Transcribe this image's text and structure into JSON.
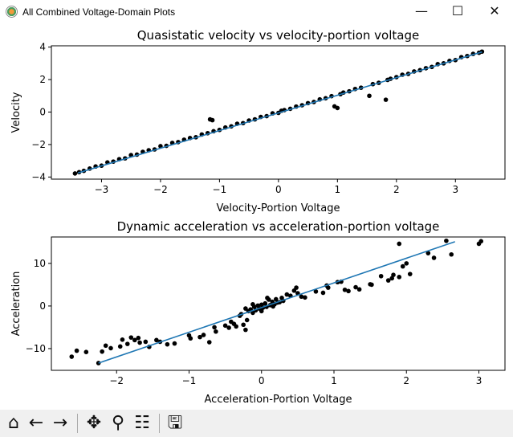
{
  "window": {
    "title": "All Combined Voltage-Domain Plots",
    "minimize": "—",
    "maximize": "☐",
    "close": "✕"
  },
  "toolbar": {
    "items": [
      {
        "name": "home-icon",
        "glyph": "⌂"
      },
      {
        "name": "back-icon",
        "glyph": "←"
      },
      {
        "name": "forward-icon",
        "glyph": "→"
      },
      {
        "name": "pan-icon",
        "glyph": "✥"
      },
      {
        "name": "zoom-icon",
        "glyph": "⚲"
      },
      {
        "name": "configure-subplots-icon",
        "glyph": "☷"
      },
      {
        "name": "save-icon",
        "glyph": "🖫"
      }
    ]
  },
  "chart_data": [
    {
      "type": "scatter",
      "title": "Quasistatic velocity vs velocity-portion voltage",
      "xlabel": "Velocity-Portion Voltage",
      "ylabel": "Velocity",
      "xlim": [
        -3.85,
        3.84
      ],
      "ylim": [
        -4.13,
        4.08
      ],
      "xticks": [
        -3,
        -2,
        -1,
        0,
        1,
        2,
        3
      ],
      "yticks": [
        -4,
        -2,
        0,
        2,
        4
      ],
      "grid": false,
      "point_color": "#000000",
      "fit_color": "#1f77b4",
      "fit_line": {
        "x": [
          -3.4,
          3.45
        ],
        "y": [
          -3.75,
          3.7
        ]
      },
      "points": [
        [
          -3.45,
          -3.78
        ],
        [
          -3.38,
          -3.7
        ],
        [
          -3.3,
          -3.62
        ],
        [
          -3.2,
          -3.48
        ],
        [
          -3.1,
          -3.35
        ],
        [
          -3.0,
          -3.3
        ],
        [
          -2.9,
          -3.1
        ],
        [
          -2.8,
          -3.05
        ],
        [
          -2.7,
          -2.9
        ],
        [
          -2.6,
          -2.85
        ],
        [
          -2.5,
          -2.65
        ],
        [
          -2.4,
          -2.62
        ],
        [
          -2.3,
          -2.45
        ],
        [
          -2.2,
          -2.35
        ],
        [
          -2.1,
          -2.3
        ],
        [
          -2.0,
          -2.1
        ],
        [
          -1.9,
          -2.08
        ],
        [
          -1.8,
          -1.9
        ],
        [
          -1.7,
          -1.85
        ],
        [
          -1.6,
          -1.7
        ],
        [
          -1.5,
          -1.6
        ],
        [
          -1.4,
          -1.55
        ],
        [
          -1.3,
          -1.38
        ],
        [
          -1.2,
          -1.3
        ],
        [
          -1.16,
          -0.45
        ],
        [
          -1.12,
          -0.5
        ],
        [
          -1.1,
          -1.18
        ],
        [
          -1.0,
          -1.1
        ],
        [
          -0.9,
          -0.95
        ],
        [
          -0.8,
          -0.88
        ],
        [
          -0.7,
          -0.72
        ],
        [
          -0.6,
          -0.68
        ],
        [
          -0.5,
          -0.52
        ],
        [
          -0.4,
          -0.45
        ],
        [
          -0.3,
          -0.3
        ],
        [
          -0.2,
          -0.25
        ],
        [
          -0.1,
          -0.08
        ],
        [
          0.0,
          -0.05
        ],
        [
          0.05,
          0.08
        ],
        [
          0.1,
          0.12
        ],
        [
          0.2,
          0.2
        ],
        [
          0.3,
          0.34
        ],
        [
          0.4,
          0.42
        ],
        [
          0.5,
          0.55
        ],
        [
          0.6,
          0.62
        ],
        [
          0.7,
          0.78
        ],
        [
          0.8,
          0.85
        ],
        [
          0.9,
          0.98
        ],
        [
          0.95,
          0.35
        ],
        [
          1.0,
          0.25
        ],
        [
          1.05,
          1.1
        ],
        [
          1.1,
          1.2
        ],
        [
          1.2,
          1.28
        ],
        [
          1.3,
          1.42
        ],
        [
          1.4,
          1.5
        ],
        [
          1.54,
          1.0
        ],
        [
          1.6,
          1.72
        ],
        [
          1.7,
          1.8
        ],
        [
          1.82,
          0.76
        ],
        [
          1.85,
          1.98
        ],
        [
          1.9,
          2.05
        ],
        [
          2.0,
          2.15
        ],
        [
          2.1,
          2.3
        ],
        [
          2.2,
          2.35
        ],
        [
          2.3,
          2.5
        ],
        [
          2.4,
          2.58
        ],
        [
          2.5,
          2.7
        ],
        [
          2.6,
          2.78
        ],
        [
          2.7,
          2.95
        ],
        [
          2.8,
          3.0
        ],
        [
          2.9,
          3.15
        ],
        [
          3.0,
          3.2
        ],
        [
          3.1,
          3.38
        ],
        [
          3.2,
          3.45
        ],
        [
          3.3,
          3.58
        ],
        [
          3.4,
          3.65
        ],
        [
          3.45,
          3.72
        ]
      ]
    },
    {
      "type": "scatter",
      "title": "Dynamic acceleration vs acceleration-portion voltage",
      "xlabel": "Acceleration-Portion Voltage",
      "ylabel": "Acceleration",
      "xlim": [
        -2.9,
        3.36
      ],
      "ylim": [
        -15.1,
        16.2
      ],
      "xticks": [
        -2,
        -1,
        0,
        1,
        2,
        3
      ],
      "yticks": [
        -10,
        0,
        10
      ],
      "grid": false,
      "point_color": "#000000",
      "fit_color": "#1f77b4",
      "fit_line": {
        "x": [
          -2.25,
          2.67
        ],
        "y": [
          -13.4,
          15.1
        ]
      },
      "points": [
        [
          -2.62,
          -11.9
        ],
        [
          -2.55,
          -10.5
        ],
        [
          -2.42,
          -10.8
        ],
        [
          -2.25,
          -13.4
        ],
        [
          -2.2,
          -10.7
        ],
        [
          -2.15,
          -9.3
        ],
        [
          -2.08,
          -9.9
        ],
        [
          -1.95,
          -9.5
        ],
        [
          -1.92,
          -7.9
        ],
        [
          -1.85,
          -8.9
        ],
        [
          -1.8,
          -7.4
        ],
        [
          -1.75,
          -8.0
        ],
        [
          -1.7,
          -7.5
        ],
        [
          -1.68,
          -8.6
        ],
        [
          -1.6,
          -8.4
        ],
        [
          -1.55,
          -9.6
        ],
        [
          -1.45,
          -8.0
        ],
        [
          -1.4,
          -8.4
        ],
        [
          -1.3,
          -9.0
        ],
        [
          -1.2,
          -8.8
        ],
        [
          -1.0,
          -6.9
        ],
        [
          -0.98,
          -7.6
        ],
        [
          -0.85,
          -7.3
        ],
        [
          -0.8,
          -6.8
        ],
        [
          -0.72,
          -8.5
        ],
        [
          -0.65,
          -5.0
        ],
        [
          -0.63,
          -6.0
        ],
        [
          -0.5,
          -4.6
        ],
        [
          -0.45,
          -5.1
        ],
        [
          -0.42,
          -3.7
        ],
        [
          -0.38,
          -4.2
        ],
        [
          -0.35,
          -4.8
        ],
        [
          -0.3,
          -2.3
        ],
        [
          -0.25,
          -4.4
        ],
        [
          -0.22,
          -5.6
        ],
        [
          -0.2,
          -3.3
        ],
        [
          -0.18,
          -1.2
        ],
        [
          -0.15,
          -0.8
        ],
        [
          -0.12,
          -1.6
        ],
        [
          -0.1,
          -0.2
        ],
        [
          -0.08,
          -1.0
        ],
        [
          -0.05,
          0.1
        ],
        [
          -0.03,
          -0.6
        ],
        [
          0.0,
          0.3
        ],
        [
          0.02,
          -0.4
        ],
        [
          0.05,
          0.6
        ],
        [
          0.07,
          -0.2
        ],
        [
          0.1,
          1.5
        ],
        [
          0.12,
          0.2
        ],
        [
          0.15,
          1.0
        ],
        [
          0.18,
          0.4
        ],
        [
          0.2,
          1.6
        ],
        [
          0.22,
          0.8
        ],
        [
          0.25,
          0.9
        ],
        [
          0.28,
          1.9
        ],
        [
          0.3,
          1.2
        ],
        [
          -0.28,
          -1.9
        ],
        [
          -0.22,
          -0.6
        ],
        [
          -0.12,
          0.4
        ],
        [
          0.0,
          -1.2
        ],
        [
          0.08,
          1.9
        ],
        [
          0.16,
          -0.1
        ],
        [
          0.35,
          2.7
        ],
        [
          0.4,
          2.4
        ],
        [
          0.45,
          3.6
        ],
        [
          0.48,
          4.3
        ],
        [
          0.5,
          3.0
        ],
        [
          0.55,
          2.2
        ],
        [
          0.6,
          2.0
        ],
        [
          0.75,
          3.4
        ],
        [
          0.85,
          3.1
        ],
        [
          0.9,
          4.8
        ],
        [
          0.92,
          4.3
        ],
        [
          1.05,
          5.6
        ],
        [
          1.1,
          5.7
        ],
        [
          1.15,
          3.8
        ],
        [
          1.2,
          3.5
        ],
        [
          1.3,
          4.4
        ],
        [
          1.35,
          3.9
        ],
        [
          1.5,
          5.1
        ],
        [
          1.52,
          5.0
        ],
        [
          1.65,
          7.0
        ],
        [
          1.75,
          6.0
        ],
        [
          1.8,
          6.5
        ],
        [
          1.82,
          7.3
        ],
        [
          1.9,
          6.8
        ],
        [
          1.95,
          9.3
        ],
        [
          2.0,
          10.0
        ],
        [
          2.05,
          7.5
        ],
        [
          1.9,
          14.6
        ],
        [
          2.3,
          12.4
        ],
        [
          2.38,
          11.3
        ],
        [
          2.55,
          15.3
        ],
        [
          2.62,
          12.1
        ],
        [
          3.0,
          14.6
        ],
        [
          3.03,
          15.2
        ]
      ]
    }
  ]
}
